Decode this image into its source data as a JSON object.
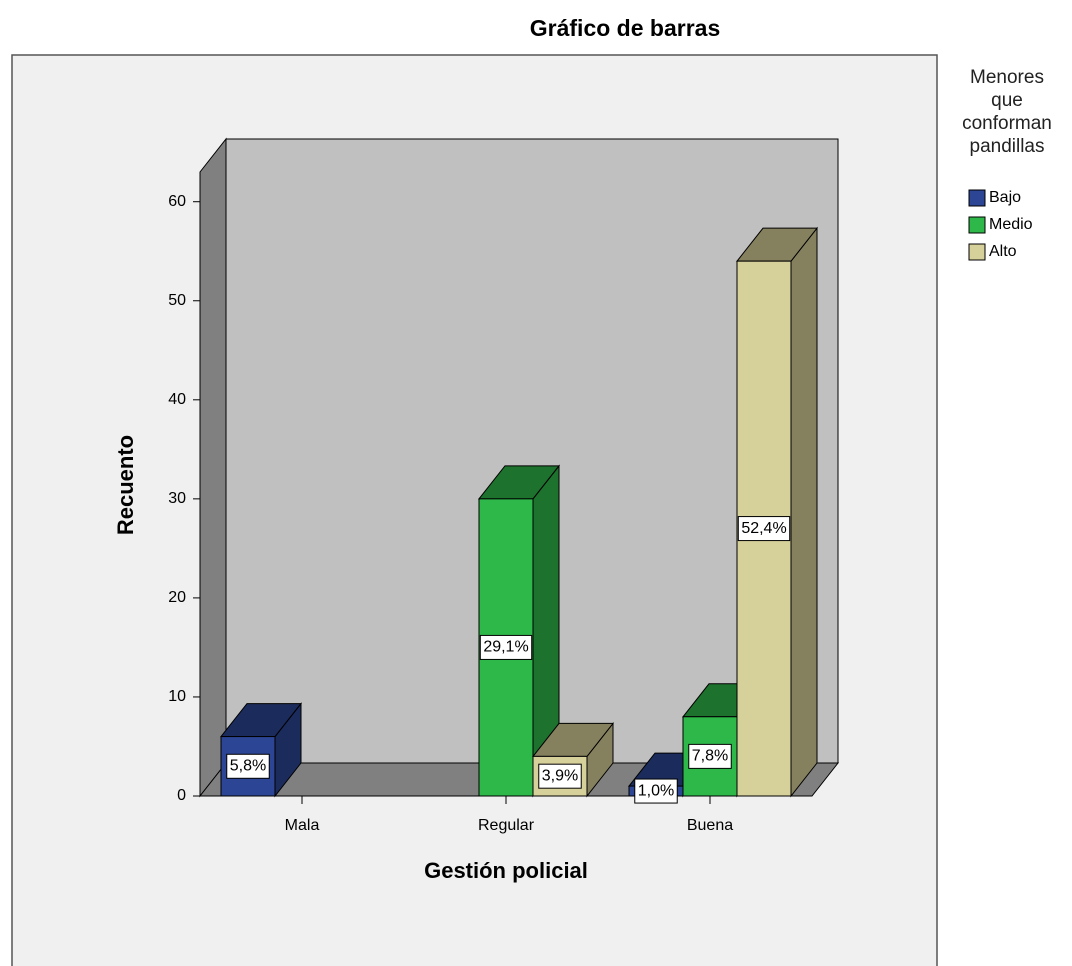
{
  "chart_data": {
    "type": "bar3d",
    "title": "Gráfico de barras",
    "x_label": "Gestión policial",
    "y_label": "Recuento",
    "legend_title": "Menores que conforman pandillas",
    "legend": "right",
    "grid": false,
    "categories": [
      "Mala",
      "Regular",
      "Buena"
    ],
    "series": [
      {
        "name": "Bajo",
        "color": "#2c4594",
        "values": [
          6,
          null,
          1
        ],
        "percent_labels": [
          "5,8%",
          null,
          "1,0%"
        ]
      },
      {
        "name": "Medio",
        "color": "#2fb84a",
        "values": [
          null,
          30,
          8
        ],
        "percent_labels": [
          null,
          "29,1%",
          "7,8%"
        ]
      },
      {
        "name": "Alto",
        "color": "#d6d09a",
        "values": [
          null,
          4,
          54
        ],
        "percent_labels": [
          null,
          "3,9%",
          "52,4%"
        ]
      }
    ],
    "ylim": [
      0,
      63
    ],
    "yticks": [
      0,
      10,
      20,
      30,
      40,
      50,
      60
    ]
  }
}
